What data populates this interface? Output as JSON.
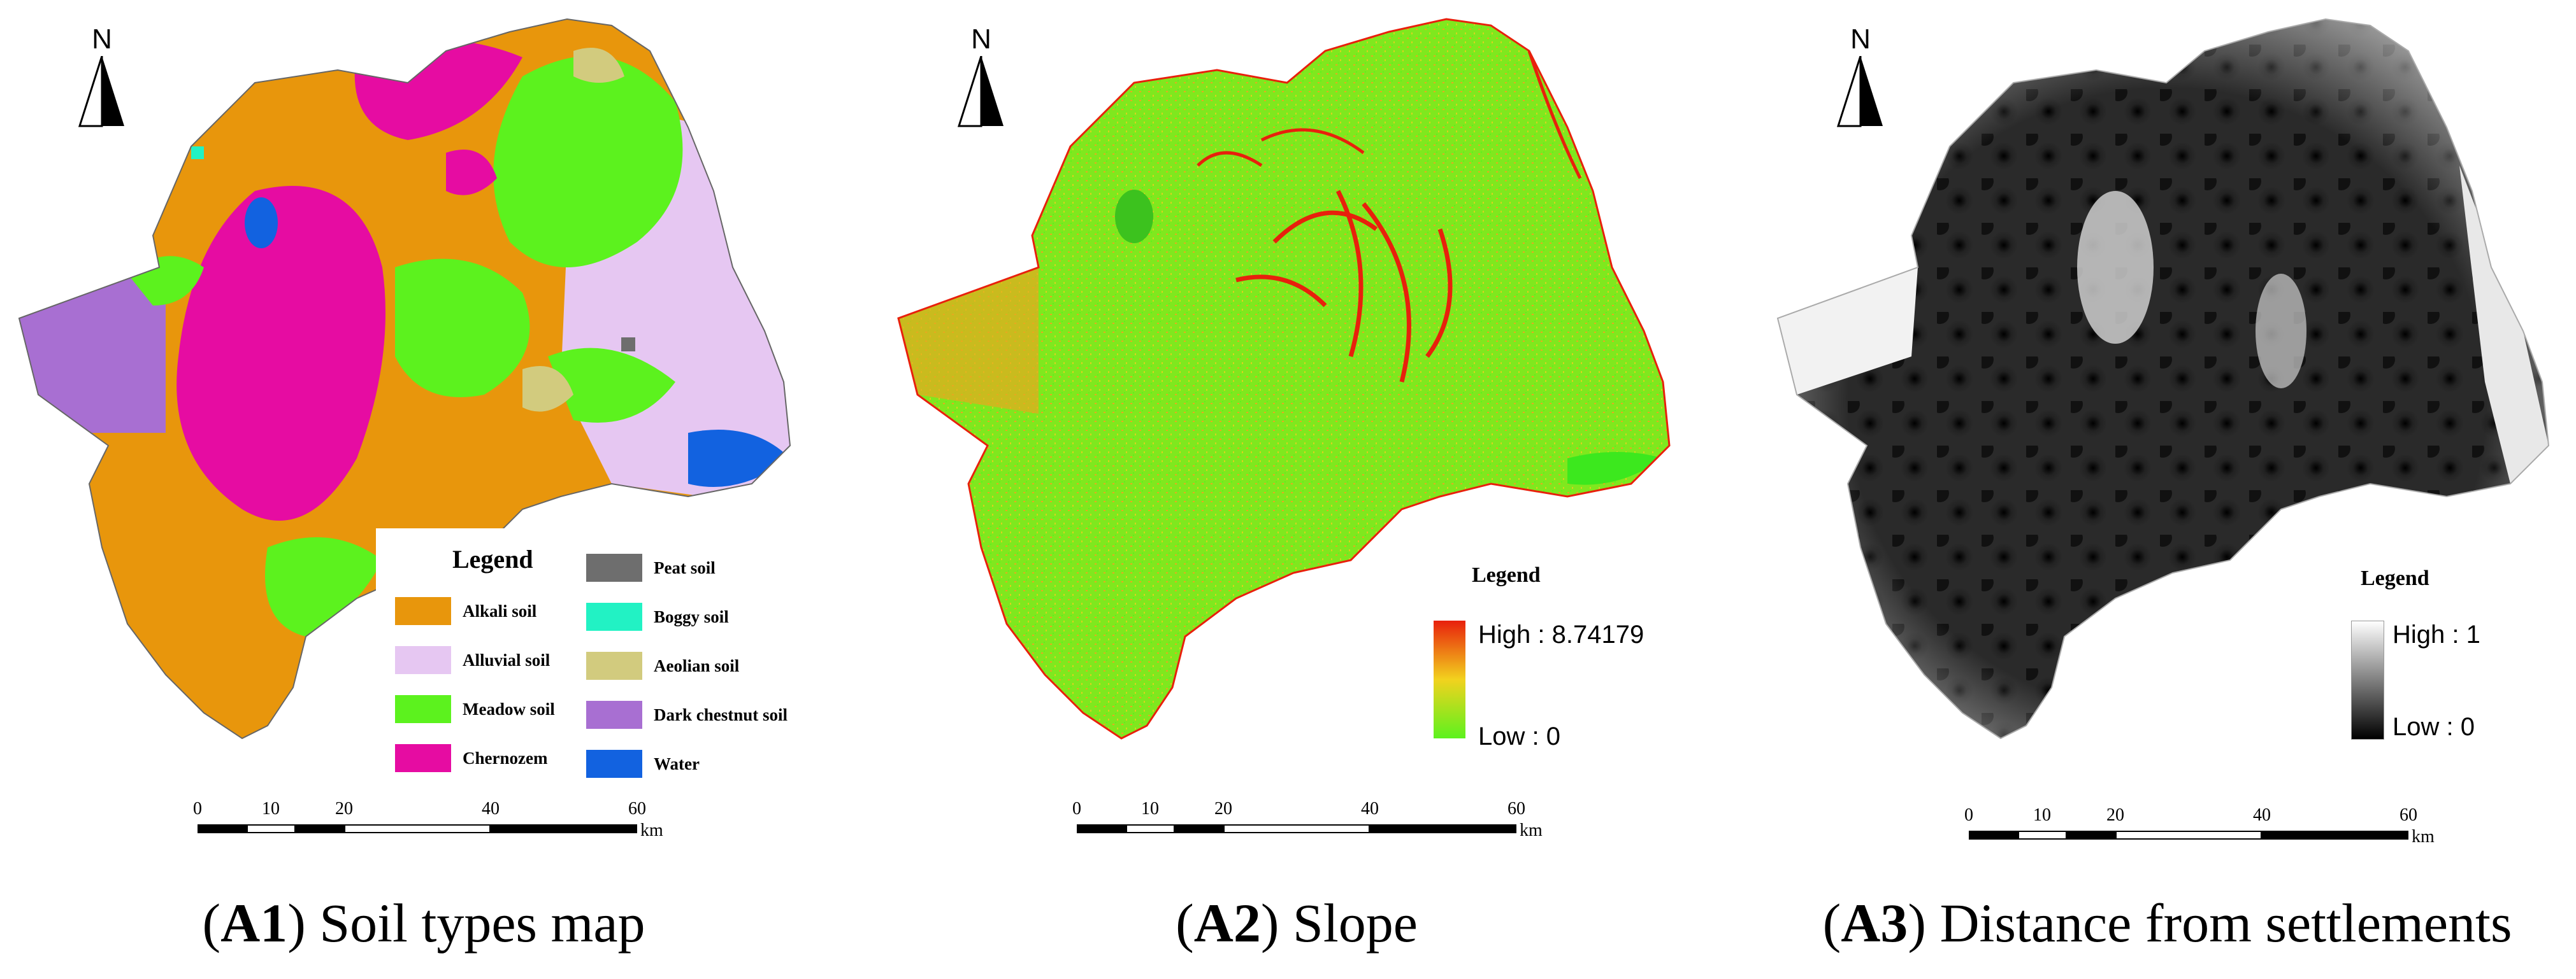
{
  "north_label": "N",
  "scale_bar": {
    "ticks": [
      "0",
      "10",
      "20",
      "40",
      "60"
    ],
    "unit": "km"
  },
  "panels": [
    {
      "id": "A1",
      "caption_id": "A1",
      "caption_text": "Soil types map",
      "legend_title": "Legend",
      "legend_items": [
        {
          "label": "Alkali soil",
          "color": "#E8960C"
        },
        {
          "label": "Alluvial soil",
          "color": "#E6C7F2"
        },
        {
          "label": "Meadow soil",
          "color": "#5CF21E"
        },
        {
          "label": "Chernozem",
          "color": "#E60CA2"
        },
        {
          "label": "Peat soil",
          "color": "#6E6E6E"
        },
        {
          "label": "Boggy soil",
          "color": "#22F2C4"
        },
        {
          "label": "Aeolian soil",
          "color": "#D2CB7E"
        },
        {
          "label": "Dark chestnut soil",
          "color": "#A86FD2"
        },
        {
          "label": "Water",
          "color": "#1262E0"
        }
      ]
    },
    {
      "id": "A2",
      "caption_id": "A2",
      "caption_text": "Slope",
      "legend_title": "Legend",
      "high_label": "High : 8.74179",
      "low_label": "Low : 0",
      "ramp_colors": [
        "#E8200C",
        "#F2D21E",
        "#5CF21E"
      ]
    },
    {
      "id": "A3",
      "caption_id": "A3",
      "caption_text": "Distance from settlements",
      "legend_title": "Legend",
      "high_label": "High : 1",
      "low_label": "Low : 0",
      "ramp_colors": [
        "#ffffff",
        "#000000"
      ]
    }
  ]
}
